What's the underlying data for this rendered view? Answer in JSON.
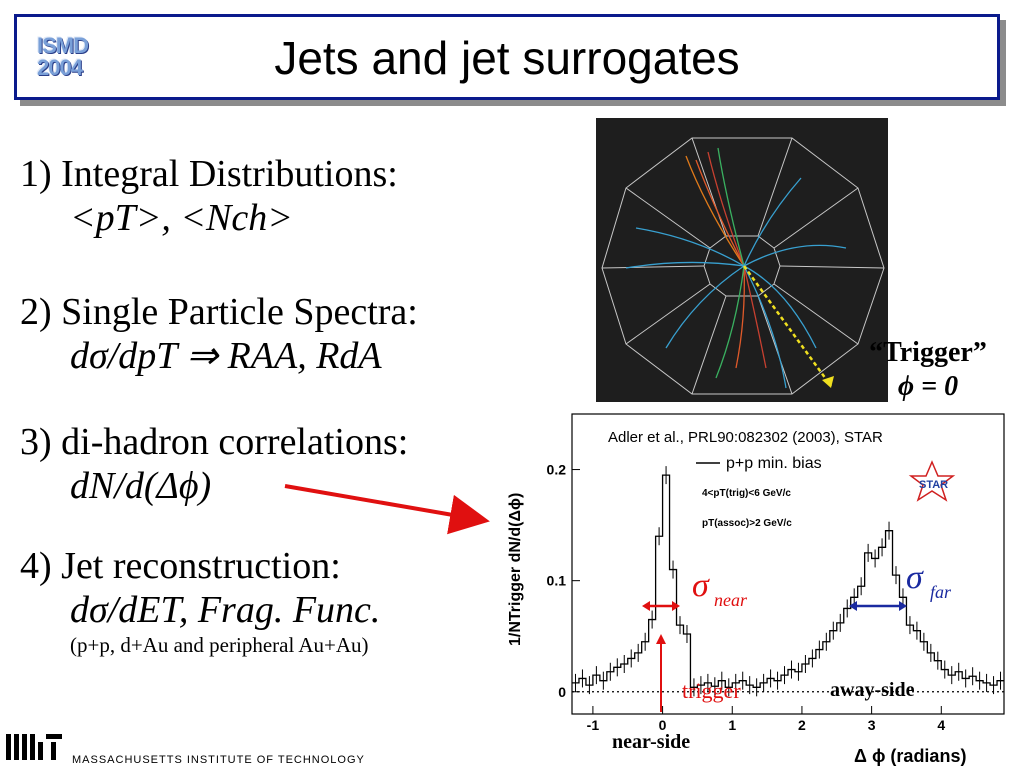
{
  "logo": {
    "line1": "ISMD",
    "line2": "2004"
  },
  "title": "Jets and jet surrogates",
  "items": [
    {
      "num": "1)",
      "head": "Integral Distributions:",
      "sub": "<pT>, <Nch>"
    },
    {
      "num": "2)",
      "head": "Single Particle Spectra:",
      "sub": "dσ/dpT ⇒ RAA, RdA"
    },
    {
      "num": "3)",
      "head": "di-hadron correlations:",
      "sub": "dN/d(Δϕ)"
    },
    {
      "num": "4)",
      "head": "Jet reconstruction:",
      "sub": "dσ/dET, Frag. Func.",
      "note": "(p+p, d+Au and peripheral Au+Au)"
    }
  ],
  "trigger_box": {
    "line1": "“Trigger”",
    "line2": "ϕ = 0"
  },
  "chart_data": {
    "type": "line",
    "citation": "Adler et al., PRL90:082302 (2003), STAR",
    "legend": "p+p min. bias",
    "cut1": "4<pT(trig)<6 GeV/c",
    "cut2": "pT(assoc)>2 GeV/c",
    "star_logo": "STAR",
    "xlabel": "Δ ϕ (radians)",
    "ylabel": "1/NTrigger dN/d(Δϕ)",
    "xlim": [
      -1.3,
      4.9
    ],
    "ylim": [
      -0.02,
      0.25
    ],
    "x_ticks": [
      -1,
      0,
      1,
      2,
      3,
      4
    ],
    "y_ticks": [
      0,
      0.1,
      0.2
    ],
    "y_tick_labels": [
      "0",
      "0.1",
      "0.2"
    ],
    "labels": {
      "sigma_near": "σ",
      "sigma_near_sub": "near",
      "sigma_far": "σ",
      "sigma_far_sub": "far",
      "trigger": "trigger",
      "away_side": "away-side",
      "near_side": "near-side"
    },
    "series": [
      {
        "x": [
          -1.25,
          -1.15,
          -1.05,
          -0.95,
          -0.85,
          -0.75,
          -0.65,
          -0.55,
          -0.45,
          -0.35,
          -0.25,
          -0.15,
          -0.05,
          0.05,
          0.15,
          0.25,
          0.35,
          0.45,
          0.55,
          0.65,
          0.75,
          0.85,
          0.95,
          1.05,
          1.15,
          1.25,
          1.35,
          1.45,
          1.55,
          1.65,
          1.75,
          1.85,
          1.95,
          2.05,
          2.15,
          2.25,
          2.35,
          2.45,
          2.55,
          2.65,
          2.75,
          2.85,
          2.95,
          3.05,
          3.15,
          3.25,
          3.35,
          3.45,
          3.55,
          3.65,
          3.75,
          3.85,
          3.95,
          4.05,
          4.15,
          4.25,
          4.35,
          4.45,
          4.55,
          4.65,
          4.75,
          4.85
        ],
        "y": [
          0.008,
          0.012,
          0.006,
          0.015,
          0.01,
          0.018,
          0.022,
          0.025,
          0.03,
          0.035,
          0.045,
          0.065,
          0.14,
          0.195,
          0.11,
          0.06,
          0.052,
          0.004,
          0.006,
          0.008,
          0.005,
          0.01,
          0.004,
          0.008,
          0.01,
          0.006,
          0.004,
          0.008,
          0.012,
          0.01,
          0.015,
          0.02,
          0.018,
          0.025,
          0.03,
          0.038,
          0.045,
          0.055,
          0.062,
          0.075,
          0.085,
          0.095,
          0.125,
          0.12,
          0.13,
          0.145,
          0.105,
          0.085,
          0.06,
          0.055,
          0.045,
          0.035,
          0.028,
          0.02,
          0.015,
          0.018,
          0.012,
          0.014,
          0.01,
          0.008,
          0.006,
          0.01
        ]
      }
    ]
  }
}
